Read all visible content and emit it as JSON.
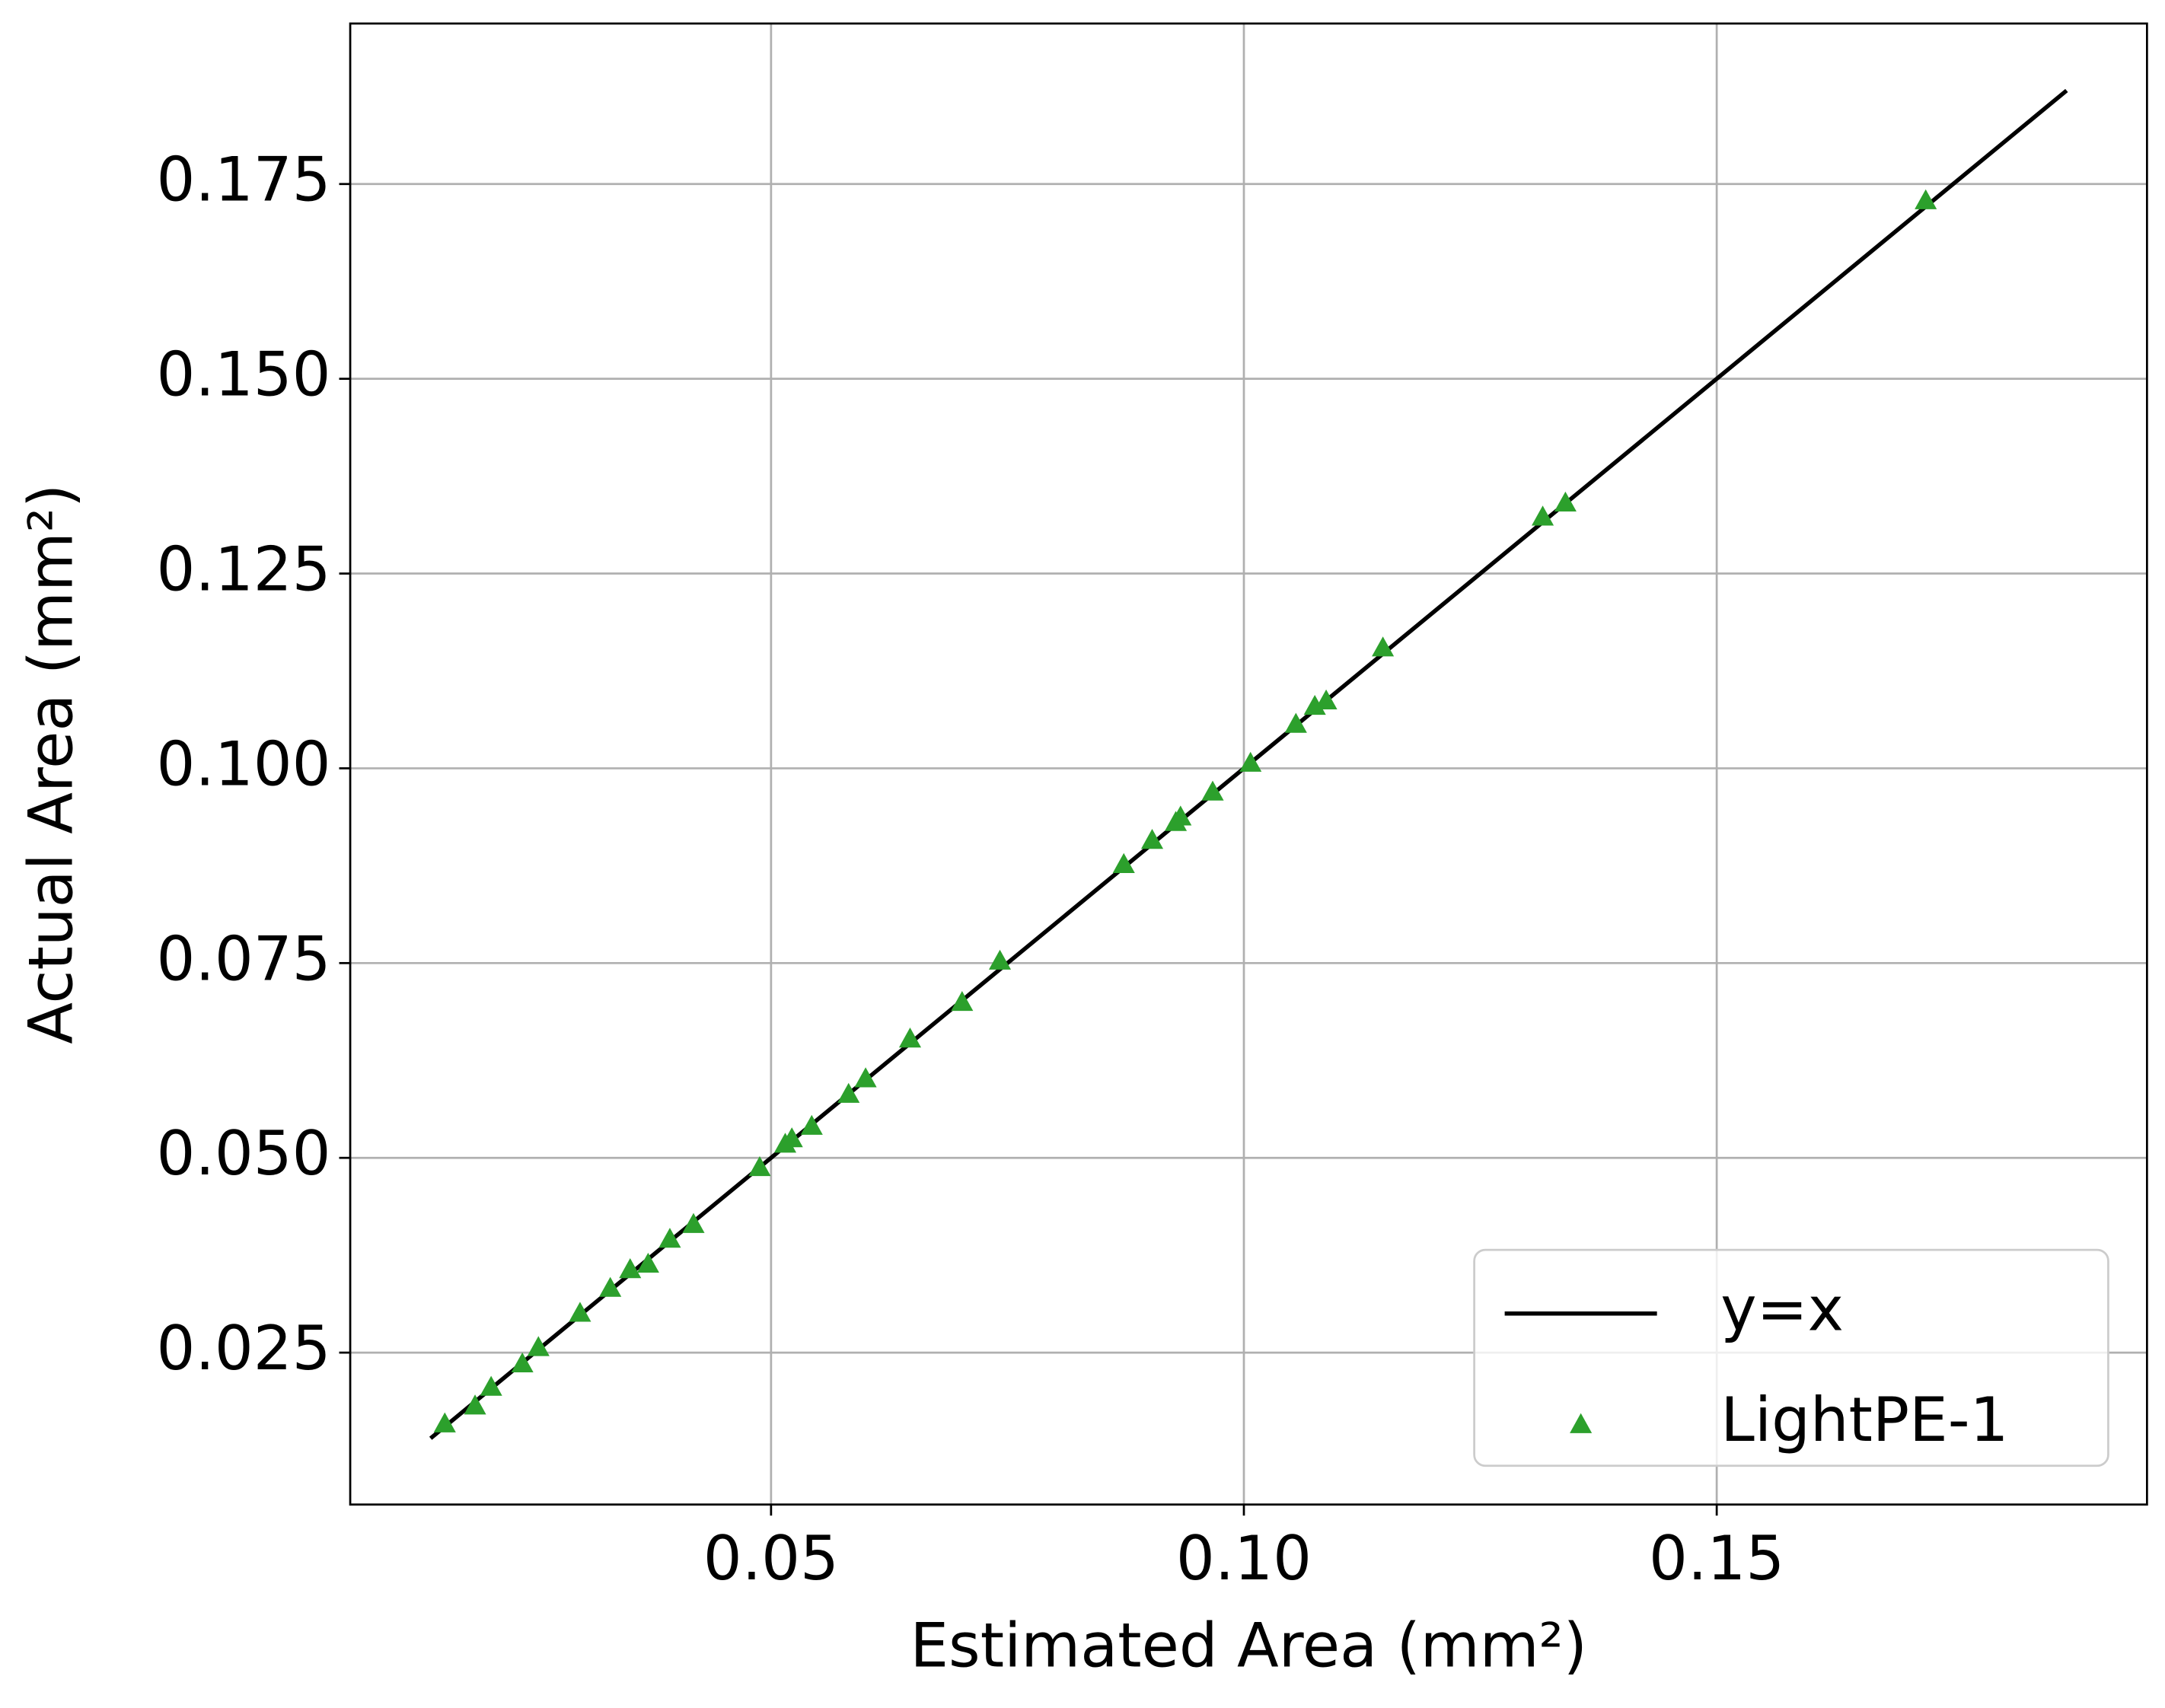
{
  "chart_data": {
    "type": "scatter",
    "xlabel": "Estimated Area (mm²)",
    "ylabel": "Actual Area (mm²)",
    "xlim": [
      0.0055,
      0.1955
    ],
    "ylim": [
      0.0055,
      0.1956
    ],
    "xticks": [
      0.05,
      {
        "value": 0.1,
        "label": "0.10"
      },
      {
        "value": 0.15,
        "label": "0.15"
      }
    ],
    "yticks": [
      0.025,
      {
        "value": 0.05,
        "label": "0.050"
      },
      0.075,
      {
        "value": 0.1,
        "label": "0.100"
      },
      0.125,
      {
        "value": 0.15,
        "label": "0.150"
      },
      0.175
    ],
    "grid": true,
    "legend": "lower right",
    "lines": [
      {
        "name": "y=x",
        "color": "#000000",
        "x": [
          0.014,
          0.187
        ],
        "y": [
          0.014,
          0.187
        ]
      }
    ],
    "series": [
      {
        "name": "LightPE-1",
        "color": "#2ca02c",
        "marker": "triangle",
        "x": [
          0.0155,
          0.0187,
          0.0204,
          0.0237,
          0.0254,
          0.0298,
          0.033,
          0.0351,
          0.037,
          0.0393,
          0.0418,
          0.0488,
          0.0515,
          0.0522,
          0.0543,
          0.0582,
          0.06,
          0.0647,
          0.0702,
          0.0742,
          0.0873,
          0.0903,
          0.0928,
          0.0933,
          0.0967,
          0.1007,
          0.1055,
          0.1075,
          0.1087,
          0.1147,
          0.1316,
          0.134,
          0.1721
        ],
        "values": [
          0.0159,
          0.0182,
          0.0206,
          0.0236,
          0.0257,
          0.0301,
          0.0333,
          0.0357,
          0.0364,
          0.0396,
          0.0415,
          0.0488,
          0.0518,
          0.0525,
          0.0541,
          0.0582,
          0.0602,
          0.0653,
          0.07,
          0.0753,
          0.0877,
          0.0908,
          0.0931,
          0.0938,
          0.097,
          0.1007,
          0.1057,
          0.108,
          0.1087,
          0.1155,
          0.1323,
          0.1341,
          0.1729
        ]
      }
    ]
  }
}
